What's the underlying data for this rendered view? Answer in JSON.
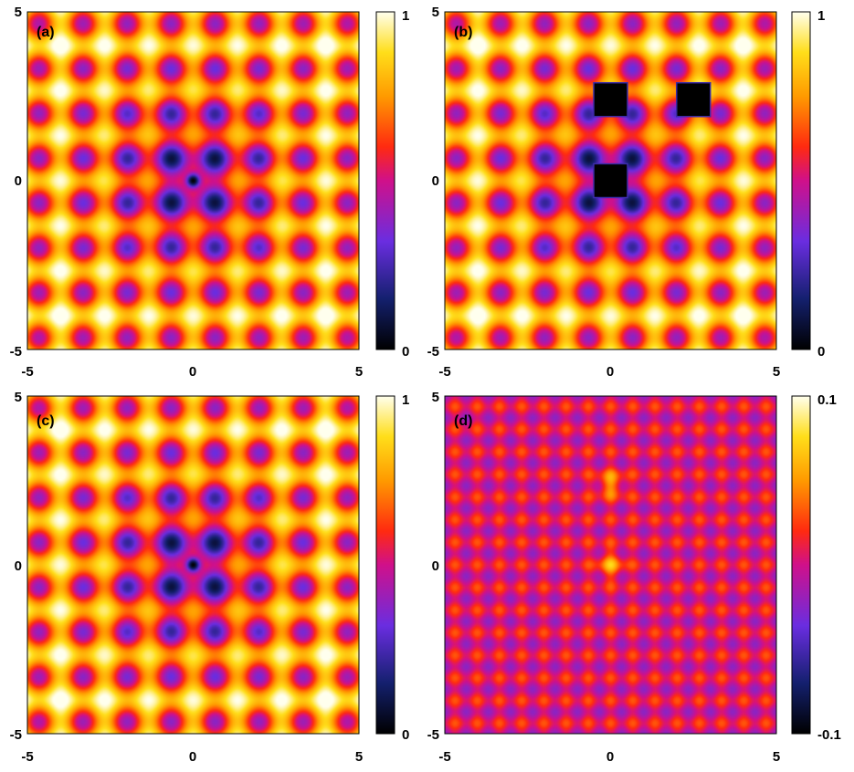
{
  "chart_data": [
    {
      "type": "heatmap",
      "panel_label": "(a)",
      "xlim": [
        -5,
        5
      ],
      "ylim": [
        -5,
        5
      ],
      "xticks": [
        "-5",
        "0",
        "5"
      ],
      "yticks": [
        "5",
        "0",
        "-5"
      ],
      "colorbar": {
        "range": [
          0,
          1
        ],
        "labels": [
          "1",
          "0"
        ],
        "colormap": "black-blue-purple-red-orange-yellow-white"
      },
      "field": {
        "lattice_spacing": 1.33,
        "center": [
          0,
          0
        ],
        "vortex_sites": [
          [
            0,
            0
          ]
        ]
      }
    },
    {
      "type": "heatmap",
      "panel_label": "(b)",
      "xlim": [
        -5,
        5
      ],
      "ylim": [
        -5,
        5
      ],
      "xticks": [
        "-5",
        "0",
        "5"
      ],
      "yticks": [
        "5",
        "0",
        "-5"
      ],
      "colorbar": {
        "range": [
          0,
          1
        ],
        "labels": [
          "1",
          "0"
        ],
        "colormap": "black-blue-purple-red-orange-yellow-white"
      },
      "field": {
        "lattice_spacing": 1.33,
        "center": [
          0,
          0
        ],
        "vortex_sites": []
      },
      "masked_squares": [
        [
          0,
          2.4
        ],
        [
          2.5,
          2.4
        ],
        [
          0,
          0
        ]
      ]
    },
    {
      "type": "heatmap",
      "panel_label": "(c)",
      "xlim": [
        -5,
        5
      ],
      "ylim": [
        -5,
        5
      ],
      "xticks": [
        "-5",
        "0",
        "5"
      ],
      "yticks": [
        "5",
        "0",
        "-5"
      ],
      "colorbar": {
        "range": [
          0,
          1
        ],
        "labels": [
          "1",
          "0"
        ],
        "colormap": "black-blue-purple-red-orange-yellow-white"
      },
      "field": {
        "lattice_spacing": 1.33,
        "center": [
          0,
          0
        ],
        "vortex_sites": [
          [
            0,
            0
          ]
        ]
      }
    },
    {
      "type": "heatmap",
      "panel_label": "(d)",
      "xlim": [
        -5,
        5
      ],
      "ylim": [
        -5,
        5
      ],
      "xticks": [
        "-5",
        "0",
        "5"
      ],
      "yticks": [
        "5",
        "0",
        "-5"
      ],
      "colorbar": {
        "range": [
          -0.1,
          0.1
        ],
        "labels": [
          "0.1",
          "-0.1"
        ],
        "colormap": "black-blue-purple-red-orange-yellow-white"
      },
      "field": {
        "lattice_spacing": 0.67,
        "bright_spots": [
          [
            0,
            2.4
          ],
          [
            0,
            0
          ]
        ]
      }
    }
  ]
}
